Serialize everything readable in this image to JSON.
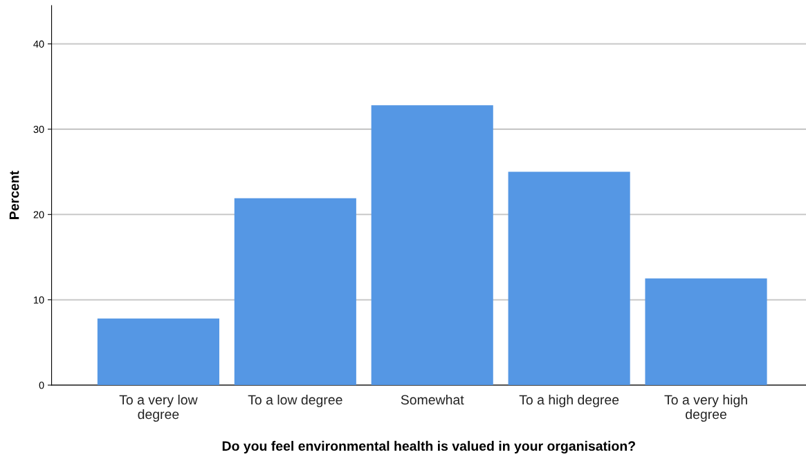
{
  "chart_data": {
    "type": "bar",
    "xlabel": "Do you feel environmental health is valued in your organisation?",
    "ylabel": "Percent",
    "categories": [
      "To a very low\ndegree",
      "To a low degree",
      "Somewhat",
      "To a high degree",
      "To a very high\ndegree"
    ],
    "values": [
      7.8,
      21.9,
      32.8,
      25.0,
      12.5
    ],
    "color": "#5597e4",
    "ylim": [
      0,
      44.5
    ],
    "yticks": [
      0,
      10,
      20,
      30,
      40
    ],
    "grid": "y"
  }
}
